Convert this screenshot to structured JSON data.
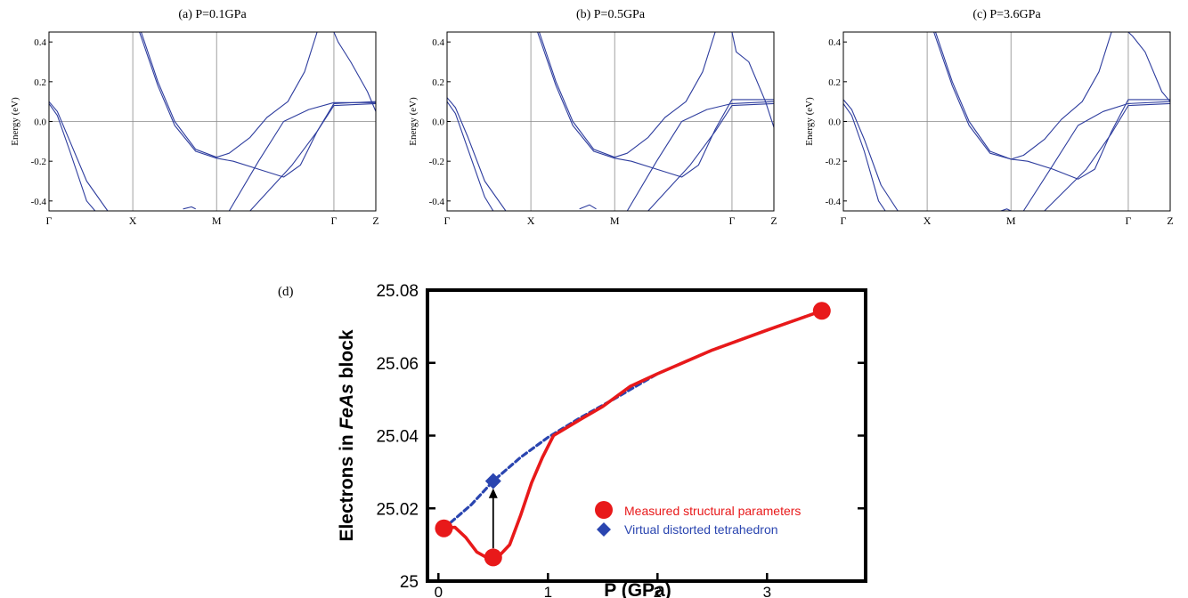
{
  "band_panels": [
    {
      "title": "(a) P=0.1GPa",
      "ylabel": "Energy (eV)",
      "ylim": [
        -0.45,
        0.45
      ],
      "yticks": [
        "0.4",
        "0.2",
        "0.0",
        "-0.2",
        "-0.4"
      ],
      "yticks_val": [
        0.4,
        0.2,
        0.0,
        -0.2,
        -0.4
      ],
      "kpoints": [
        "Γ",
        "X",
        "M",
        "Γ",
        "Z"
      ],
      "kpos": [
        0,
        1,
        2,
        3.4,
        3.9
      ],
      "bands": [
        [
          [
            0,
            0.1
          ],
          [
            0.1,
            0.05
          ],
          [
            0.25,
            -0.1
          ],
          [
            0.45,
            -0.3
          ],
          [
            0.7,
            -0.45
          ]
        ],
        [
          [
            0,
            0.09
          ],
          [
            0.1,
            0.03
          ],
          [
            0.25,
            -0.15
          ],
          [
            0.45,
            -0.4
          ],
          [
            0.55,
            -0.45
          ]
        ],
        [
          [
            1.1,
            0.45
          ],
          [
            1.3,
            0.2
          ],
          [
            1.5,
            0.0
          ],
          [
            1.75,
            -0.14
          ],
          [
            2.0,
            -0.18
          ],
          [
            2.15,
            -0.16
          ],
          [
            2.4,
            -0.08
          ],
          [
            2.6,
            0.02
          ],
          [
            2.85,
            0.1
          ],
          [
            3.05,
            0.25
          ],
          [
            3.2,
            0.45
          ]
        ],
        [
          [
            1.08,
            0.45
          ],
          [
            1.3,
            0.18
          ],
          [
            1.5,
            -0.02
          ],
          [
            1.75,
            -0.15
          ],
          [
            2.0,
            -0.185
          ],
          [
            2.2,
            -0.2
          ],
          [
            2.5,
            -0.24
          ],
          [
            2.8,
            -0.28
          ],
          [
            3.0,
            -0.22
          ],
          [
            3.2,
            -0.05
          ],
          [
            3.4,
            0.09
          ],
          [
            3.9,
            0.1
          ]
        ],
        [
          [
            2.15,
            -0.45
          ],
          [
            2.5,
            -0.2
          ],
          [
            2.8,
            0.0
          ],
          [
            3.1,
            0.06
          ],
          [
            3.4,
            0.095
          ],
          [
            3.9,
            0.095
          ]
        ],
        [
          [
            2.4,
            -0.45
          ],
          [
            2.9,
            -0.22
          ],
          [
            3.2,
            -0.05
          ],
          [
            3.4,
            0.08
          ],
          [
            3.9,
            0.09
          ]
        ],
        [
          [
            3.4,
            0.45
          ],
          [
            3.45,
            0.4
          ],
          [
            3.6,
            0.3
          ],
          [
            3.8,
            0.15
          ],
          [
            3.9,
            0.05
          ]
        ],
        [
          [
            1.6,
            -0.44
          ],
          [
            1.7,
            -0.43
          ],
          [
            1.75,
            -0.44
          ]
        ]
      ]
    },
    {
      "title": "(b) P=0.5GPa",
      "ylabel": "Energy (eV)",
      "ylim": [
        -0.45,
        0.45
      ],
      "yticks": [
        "0.4",
        "0.2",
        "0.0",
        "-0.2",
        "-0.4"
      ],
      "yticks_val": [
        0.4,
        0.2,
        0.0,
        -0.2,
        -0.4
      ],
      "kpoints": [
        "Γ",
        "X",
        "M",
        "Γ",
        "Z"
      ],
      "kpos": [
        0,
        1,
        2,
        3.4,
        3.9
      ],
      "bands": [
        [
          [
            0,
            0.12
          ],
          [
            0.1,
            0.07
          ],
          [
            0.25,
            -0.08
          ],
          [
            0.45,
            -0.3
          ],
          [
            0.7,
            -0.45
          ]
        ],
        [
          [
            0,
            0.1
          ],
          [
            0.1,
            0.04
          ],
          [
            0.25,
            -0.14
          ],
          [
            0.45,
            -0.38
          ],
          [
            0.55,
            -0.45
          ]
        ],
        [
          [
            1.1,
            0.45
          ],
          [
            1.3,
            0.2
          ],
          [
            1.5,
            0.0
          ],
          [
            1.75,
            -0.14
          ],
          [
            2.0,
            -0.18
          ],
          [
            2.15,
            -0.16
          ],
          [
            2.4,
            -0.08
          ],
          [
            2.6,
            0.02
          ],
          [
            2.85,
            0.1
          ],
          [
            3.05,
            0.25
          ],
          [
            3.2,
            0.45
          ]
        ],
        [
          [
            1.08,
            0.45
          ],
          [
            1.3,
            0.18
          ],
          [
            1.5,
            -0.02
          ],
          [
            1.75,
            -0.15
          ],
          [
            2.0,
            -0.185
          ],
          [
            2.2,
            -0.2
          ],
          [
            2.5,
            -0.24
          ],
          [
            2.8,
            -0.28
          ],
          [
            3.0,
            -0.22
          ],
          [
            3.2,
            -0.04
          ],
          [
            3.4,
            0.11
          ],
          [
            3.9,
            0.11
          ]
        ],
        [
          [
            2.15,
            -0.45
          ],
          [
            2.5,
            -0.2
          ],
          [
            2.8,
            0.0
          ],
          [
            3.1,
            0.06
          ],
          [
            3.4,
            0.09
          ],
          [
            3.9,
            0.1
          ]
        ],
        [
          [
            2.4,
            -0.45
          ],
          [
            2.9,
            -0.22
          ],
          [
            3.2,
            -0.05
          ],
          [
            3.4,
            0.08
          ],
          [
            3.9,
            0.09
          ]
        ],
        [
          [
            3.4,
            0.45
          ],
          [
            3.45,
            0.35
          ],
          [
            3.6,
            0.3
          ],
          [
            3.8,
            0.1
          ],
          [
            3.9,
            -0.03
          ]
        ],
        [
          [
            1.58,
            -0.44
          ],
          [
            1.7,
            -0.42
          ],
          [
            1.78,
            -0.44
          ]
        ]
      ]
    },
    {
      "title": "(c) P=3.6GPa",
      "ylabel": "Energy (eV)",
      "ylim": [
        -0.45,
        0.45
      ],
      "yticks": [
        "0.4",
        "0.2",
        "0.0",
        "-0.2",
        "-0.4"
      ],
      "yticks_val": [
        0.4,
        0.2,
        0.0,
        -0.2,
        -0.4
      ],
      "kpoints": [
        "Γ",
        "X",
        "M",
        "Γ",
        "Z"
      ],
      "kpos": [
        0,
        1,
        2,
        3.4,
        3.9
      ],
      "bands": [
        [
          [
            0,
            0.11
          ],
          [
            0.1,
            0.06
          ],
          [
            0.25,
            -0.09
          ],
          [
            0.45,
            -0.32
          ],
          [
            0.65,
            -0.45
          ]
        ],
        [
          [
            0,
            0.09
          ],
          [
            0.1,
            0.03
          ],
          [
            0.25,
            -0.15
          ],
          [
            0.42,
            -0.4
          ],
          [
            0.5,
            -0.45
          ]
        ],
        [
          [
            1.1,
            0.45
          ],
          [
            1.3,
            0.2
          ],
          [
            1.5,
            0.0
          ],
          [
            1.75,
            -0.15
          ],
          [
            2.0,
            -0.19
          ],
          [
            2.15,
            -0.17
          ],
          [
            2.4,
            -0.09
          ],
          [
            2.6,
            0.01
          ],
          [
            2.85,
            0.1
          ],
          [
            3.05,
            0.25
          ],
          [
            3.2,
            0.45
          ]
        ],
        [
          [
            1.08,
            0.45
          ],
          [
            1.3,
            0.18
          ],
          [
            1.5,
            -0.02
          ],
          [
            1.75,
            -0.16
          ],
          [
            2.0,
            -0.19
          ],
          [
            2.2,
            -0.2
          ],
          [
            2.5,
            -0.24
          ],
          [
            2.8,
            -0.29
          ],
          [
            3.0,
            -0.24
          ],
          [
            3.2,
            -0.05
          ],
          [
            3.4,
            0.11
          ],
          [
            3.9,
            0.11
          ]
        ],
        [
          [
            2.15,
            -0.45
          ],
          [
            2.5,
            -0.22
          ],
          [
            2.8,
            -0.02
          ],
          [
            3.1,
            0.05
          ],
          [
            3.4,
            0.09
          ],
          [
            3.9,
            0.1
          ]
        ],
        [
          [
            2.4,
            -0.45
          ],
          [
            2.9,
            -0.24
          ],
          [
            3.2,
            -0.06
          ],
          [
            3.4,
            0.08
          ],
          [
            3.9,
            0.09
          ]
        ],
        [
          [
            3.4,
            0.45
          ],
          [
            3.45,
            0.43
          ],
          [
            3.6,
            0.35
          ],
          [
            3.8,
            0.15
          ],
          [
            3.9,
            0.1
          ]
        ],
        [
          [
            1.88,
            -0.45
          ],
          [
            1.95,
            -0.44
          ],
          [
            2.0,
            -0.45
          ]
        ]
      ]
    }
  ],
  "panel_d": {
    "label": "(d)",
    "chart_data": {
      "type": "line",
      "xlabel": "P (GPa)",
      "ylabel_prefix": "Electrons in ",
      "ylabel_italic": "FeAs",
      "ylabel_suffix": " block",
      "xlim": [
        -0.1,
        3.9
      ],
      "ylim": [
        25.0,
        25.08
      ],
      "xticks": [
        0,
        1,
        2,
        3
      ],
      "xtick_labels": [
        "0",
        "1",
        "2",
        "3"
      ],
      "yticks": [
        25.0,
        25.02,
        25.04,
        25.06,
        25.08
      ],
      "ytick_labels": [
        "25",
        "25.02",
        "25.04",
        "25.06",
        "25.08"
      ],
      "series": [
        {
          "name": "Measured structural parameters",
          "color": "#e8191a",
          "style": "solid",
          "points": [
            [
              0.05,
              25.0145
            ],
            [
              0.5,
              25.0065
            ],
            [
              3.5,
              25.0743
            ]
          ],
          "curve": [
            [
              0.05,
              25.0145
            ],
            [
              0.15,
              25.0148
            ],
            [
              0.25,
              25.012
            ],
            [
              0.35,
              25.008
            ],
            [
              0.45,
              25.0063
            ],
            [
              0.55,
              25.0068
            ],
            [
              0.65,
              25.01
            ],
            [
              0.75,
              25.018
            ],
            [
              0.85,
              25.027
            ],
            [
              0.95,
              25.034
            ],
            [
              1.05,
              25.04
            ],
            [
              1.3,
              25.0445
            ],
            [
              1.5,
              25.048
            ],
            [
              1.75,
              25.0535
            ],
            [
              2.0,
              25.057
            ],
            [
              2.5,
              25.0635
            ],
            [
              3.0,
              25.069
            ],
            [
              3.5,
              25.0743
            ]
          ]
        },
        {
          "name": "Virtual distorted tetrahedron",
          "color": "#2a45b0",
          "style": "dashed",
          "points": [
            [
              0.5,
              25.0275
            ]
          ],
          "curve": [
            [
              0.05,
              25.0145
            ],
            [
              0.3,
              25.021
            ],
            [
              0.5,
              25.0275
            ],
            [
              0.75,
              25.034
            ],
            [
              1.0,
              25.0395
            ],
            [
              1.3,
              25.045
            ],
            [
              1.6,
              25.05
            ],
            [
              2.0,
              25.057
            ],
            [
              2.5,
              25.0635
            ],
            [
              3.0,
              25.069
            ],
            [
              3.5,
              25.0743
            ]
          ]
        }
      ],
      "annotation_arrow": {
        "from": [
          0.5,
          25.009
        ],
        "to": [
          0.5,
          25.0255
        ]
      }
    }
  }
}
